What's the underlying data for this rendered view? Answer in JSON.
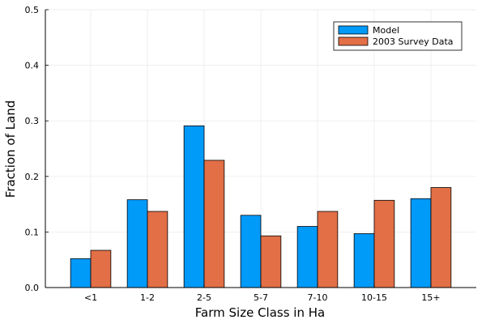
{
  "chart_data": {
    "type": "bar",
    "categories": [
      "<1",
      "1-2",
      "2-5",
      "5-7",
      "7-10",
      "10-15",
      "15+"
    ],
    "series": [
      {
        "name": "Model",
        "color": "#009af9",
        "values": [
          0.052,
          0.158,
          0.291,
          0.13,
          0.11,
          0.097,
          0.16
        ]
      },
      {
        "name": "2003 Survey Data",
        "color": "#e26f46",
        "values": [
          0.067,
          0.137,
          0.229,
          0.093,
          0.137,
          0.157,
          0.18
        ]
      }
    ],
    "title": "",
    "xlabel": "Farm Size Class in Ha",
    "ylabel": "Fraction of Land",
    "ylim": [
      0,
      0.5
    ],
    "yticks": [
      0.0,
      0.1,
      0.2,
      0.3,
      0.4,
      0.5
    ],
    "ytick_labels": [
      "0.0",
      "0.1",
      "0.2",
      "0.3",
      "0.4",
      "0.5"
    ],
    "grid": true,
    "legend_position": "top-right"
  }
}
